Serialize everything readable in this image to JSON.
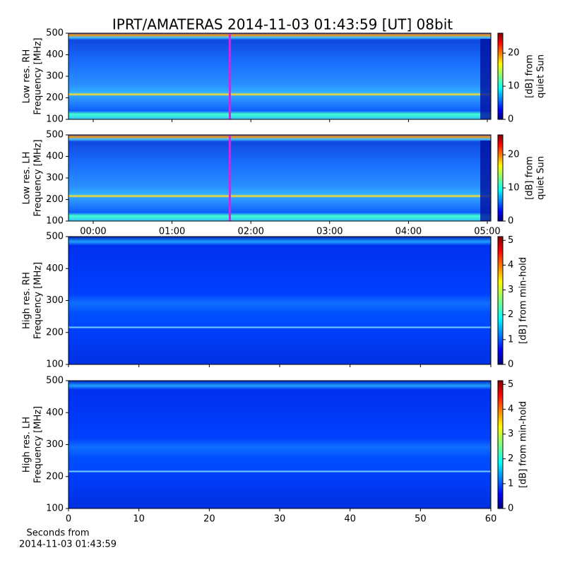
{
  "figure": {
    "title": "IPRT/AMATERAS 2014-11-03 01:43:59 [UT]   08bit",
    "xlabel": [
      "Seconds from",
      "2014-11-03 01:43:59"
    ]
  },
  "chart_data": [
    {
      "type": "heatmap",
      "ylabel": [
        "Low res. RH",
        "Frequency [MHz]"
      ],
      "xlim": [
        -18.8,
        302.7
      ],
      "xticks": [
        0,
        60,
        120,
        180,
        240,
        300
      ],
      "ylim": [
        100,
        500
      ],
      "yticks": [
        100,
        200,
        300,
        400,
        500
      ],
      "marker_x": 104,
      "marker_color": "#e020e0",
      "colorbar": {
        "label": [
          "[dB] from",
          "quiet Sun"
        ],
        "lim": [
          0,
          26
        ],
        "ticks": [
          0,
          10,
          20
        ]
      }
    },
    {
      "type": "heatmap",
      "ylabel": [
        "Low res. LH",
        "Frequency [MHz]"
      ],
      "xlim": [
        -18.8,
        302.7
      ],
      "xticks": [
        {
          "value": 0,
          "label": "00:00"
        },
        {
          "value": 60,
          "label": "01:00"
        },
        {
          "value": 120,
          "label": "02:00"
        },
        {
          "value": 180,
          "label": "03:00"
        },
        {
          "value": 240,
          "label": "04:00"
        },
        {
          "value": 300,
          "label": "05:00"
        }
      ],
      "ylim": [
        100,
        500
      ],
      "yticks": [
        100,
        200,
        300,
        400,
        500
      ],
      "marker_x": 104,
      "marker_color": "#e020e0",
      "colorbar": {
        "label": [
          "[dB] from",
          "quiet Sun"
        ],
        "lim": [
          0,
          26
        ],
        "ticks": [
          0,
          10,
          20
        ]
      }
    },
    {
      "type": "heatmap",
      "ylabel": [
        "High res. RH",
        "Frequency [MHz]"
      ],
      "xlim": [
        0,
        60
      ],
      "xticks": [
        0,
        10,
        20,
        30,
        40,
        50,
        60
      ],
      "ylim": [
        100,
        500
      ],
      "yticks": [
        100,
        200,
        300,
        400,
        500
      ],
      "colorbar": {
        "label": [
          "[dB] from min-hold"
        ],
        "lim": [
          0,
          5.15
        ],
        "ticks": [
          0,
          1,
          2,
          3,
          4,
          5
        ]
      }
    },
    {
      "type": "heatmap",
      "ylabel": [
        "High res. LH",
        "Frequency [MHz]"
      ],
      "xlim": [
        0,
        60
      ],
      "xticks": [
        0,
        10,
        20,
        30,
        40,
        50,
        60
      ],
      "ylim": [
        100,
        500
      ],
      "yticks": [
        100,
        200,
        300,
        400,
        500
      ],
      "colorbar": {
        "label": [
          "[dB] from min-hold"
        ],
        "lim": [
          0,
          5.15
        ],
        "ticks": [
          0,
          1,
          2,
          3,
          4,
          5
        ]
      }
    }
  ]
}
